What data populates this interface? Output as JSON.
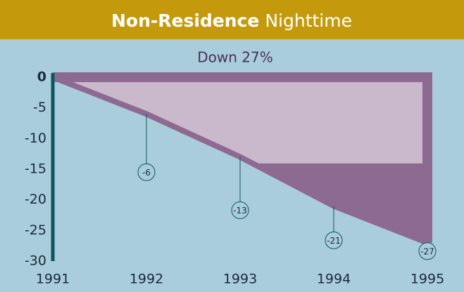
{
  "chart_data": {
    "type": "line",
    "title_bold": "Non-Residence",
    "title": "Nighttime",
    "subtitle": "Down 27%",
    "x": [
      1991,
      1992,
      1993,
      1994,
      1995
    ],
    "series": [
      {
        "color": "#8d6a90",
        "values": [
          0,
          -6,
          -13,
          -21,
          -27
        ]
      }
    ],
    "xlim": [
      1991,
      1995
    ],
    "xticks": [
      1991,
      1992,
      1993,
      1994,
      1995
    ],
    "ylim": [
      -30,
      0
    ],
    "yticks": [
      0,
      -5,
      -10,
      -15,
      -20,
      -25,
      -30
    ]
  }
}
